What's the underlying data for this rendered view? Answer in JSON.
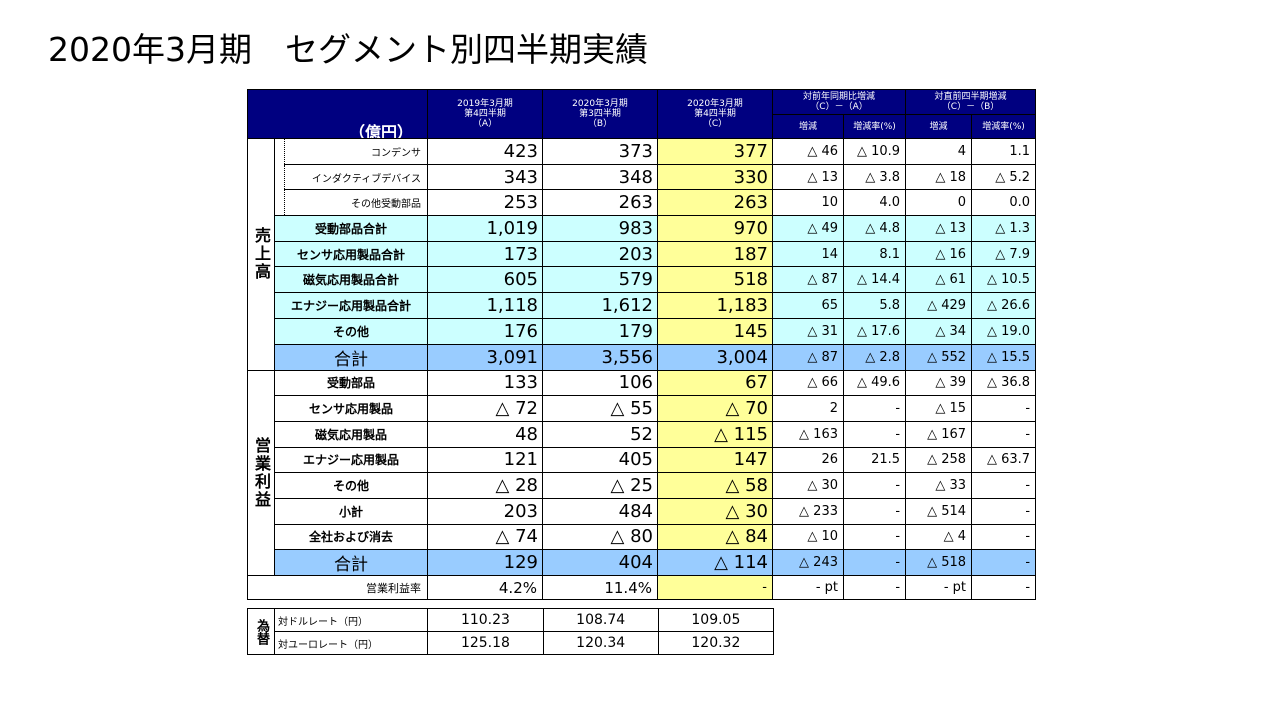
{
  "title": "2020年3月期　セグメント別四半期実績",
  "header": {
    "unit": "（億円）",
    "colA": {
      "line1": "2019年3月期",
      "line2": "第4四半期",
      "line3": "（A）"
    },
    "colB": {
      "line1": "2020年3月期",
      "line2": "第3四半期",
      "line3": "（B）"
    },
    "colC": {
      "line1": "2020年3月期",
      "line2": "第4四半期",
      "line3": "（C）"
    },
    "yoy": {
      "line1": "対前年同期比増減",
      "line2": "（C）－（A）",
      "diff": "増減",
      "rate": "増減率(%)"
    },
    "qoq": {
      "line1": "対直前四半期増減",
      "line2": "（C）－（B）",
      "diff": "増減",
      "rate": "増減率(%)"
    }
  },
  "sales": {
    "label": "売上高",
    "rows": [
      {
        "name": "コンデンサ",
        "a": "423",
        "b": "373",
        "c": "377",
        "yd": "△ 46",
        "yr": "△ 10.9",
        "qd": "4",
        "qr": "1.1"
      },
      {
        "name": "インダクティブデバイス",
        "a": "343",
        "b": "348",
        "c": "330",
        "yd": "△ 13",
        "yr": "△ 3.8",
        "qd": "△ 18",
        "qr": "△ 5.2"
      },
      {
        "name": "その他受動部品",
        "a": "253",
        "b": "263",
        "c": "263",
        "yd": "10",
        "yr": "4.0",
        "qd": "0",
        "qr": "0.0"
      },
      {
        "name": "受動部品合計",
        "a": "1,019",
        "b": "983",
        "c": "970",
        "yd": "△ 49",
        "yr": "△ 4.8",
        "qd": "△ 13",
        "qr": "△ 1.3"
      },
      {
        "name": "センサ応用製品合計",
        "a": "173",
        "b": "203",
        "c": "187",
        "yd": "14",
        "yr": "8.1",
        "qd": "△ 16",
        "qr": "△ 7.9"
      },
      {
        "name": "磁気応用製品合計",
        "a": "605",
        "b": "579",
        "c": "518",
        "yd": "△ 87",
        "yr": "△ 14.4",
        "qd": "△ 61",
        "qr": "△ 10.5"
      },
      {
        "name": "エナジー応用製品合計",
        "a": "1,118",
        "b": "1,612",
        "c": "1,183",
        "yd": "65",
        "yr": "5.8",
        "qd": "△ 429",
        "qr": "△ 26.6"
      },
      {
        "name": "その他",
        "a": "176",
        "b": "179",
        "c": "145",
        "yd": "△ 31",
        "yr": "△ 17.6",
        "qd": "△ 34",
        "qr": "△ 19.0"
      },
      {
        "name": "合計",
        "a": "3,091",
        "b": "3,556",
        "c": "3,004",
        "yd": "△ 87",
        "yr": "△ 2.8",
        "qd": "△ 552",
        "qr": "△ 15.5"
      }
    ]
  },
  "profit": {
    "label": "営業利益",
    "rows": [
      {
        "name": "受動部品",
        "a": "133",
        "b": "106",
        "c": "67",
        "yd": "△ 66",
        "yr": "△ 49.6",
        "qd": "△ 39",
        "qr": "△ 36.8"
      },
      {
        "name": "センサ応用製品",
        "a": "△ 72",
        "b": "△ 55",
        "c": "△ 70",
        "yd": "2",
        "yr": "-",
        "qd": "△ 15",
        "qr": "-"
      },
      {
        "name": "磁気応用製品",
        "a": "48",
        "b": "52",
        "c": "△ 115",
        "yd": "△ 163",
        "yr": "-",
        "qd": "△ 167",
        "qr": "-"
      },
      {
        "name": "エナジー応用製品",
        "a": "121",
        "b": "405",
        "c": "147",
        "yd": "26",
        "yr": "21.5",
        "qd": "△ 258",
        "qr": "△ 63.7"
      },
      {
        "name": "その他",
        "a": "△ 28",
        "b": "△ 25",
        "c": "△ 58",
        "yd": "△ 30",
        "yr": "-",
        "qd": "△ 33",
        "qr": "-"
      },
      {
        "name": "小計",
        "a": "203",
        "b": "484",
        "c": "△ 30",
        "yd": "△ 233",
        "yr": "-",
        "qd": "△ 514",
        "qr": "-"
      },
      {
        "name": "全社および消去",
        "a": "△ 74",
        "b": "△ 80",
        "c": "△ 84",
        "yd": "△ 10",
        "yr": "-",
        "qd": "△ 4",
        "qr": "-"
      },
      {
        "name": "合計",
        "a": "129",
        "b": "404",
        "c": "△ 114",
        "yd": "△ 243",
        "yr": "-",
        "qd": "△ 518",
        "qr": "-"
      }
    ]
  },
  "margin": {
    "name": "営業利益率",
    "a": "4.2%",
    "b": "11.4%",
    "c": "-",
    "yd": "- pt",
    "yr": "-",
    "qd": "- pt",
    "qr": "-"
  },
  "fx": {
    "label": "為替",
    "rows": [
      {
        "name": "対ドルレート（円）",
        "a": "110.23",
        "b": "108.74",
        "c": "109.05"
      },
      {
        "name": "対ユーロレート（円）",
        "a": "125.18",
        "b": "120.34",
        "c": "120.32"
      }
    ]
  },
  "colors": {
    "header": "#000080",
    "highlight": "#ffff99",
    "subtotal": "#ccffff",
    "total": "#99ccff"
  }
}
